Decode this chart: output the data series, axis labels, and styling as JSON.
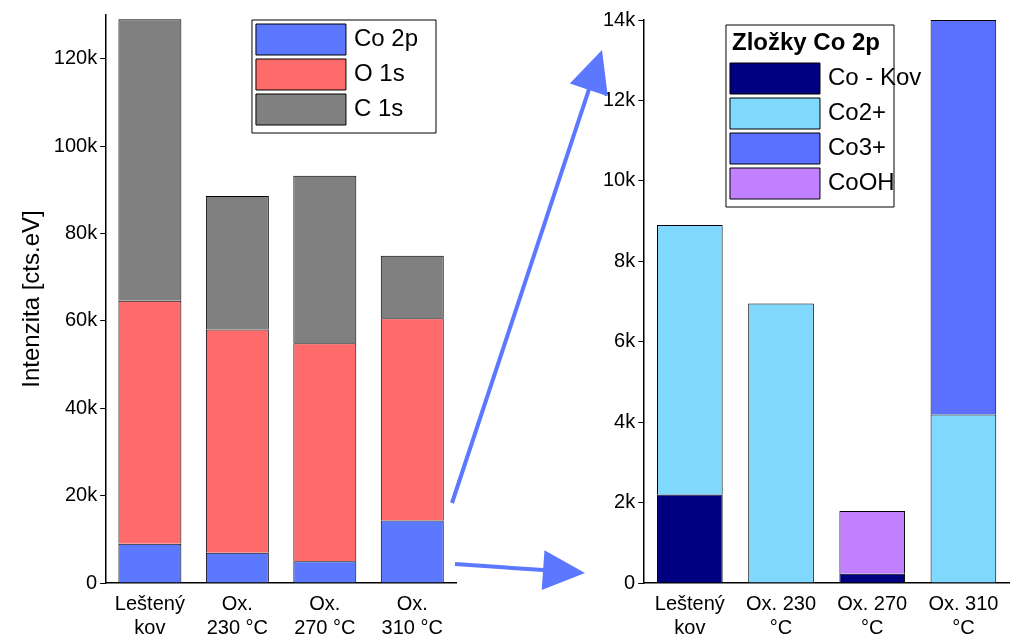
{
  "chart_data": [
    {
      "type": "bar",
      "stacked": true,
      "ylabel": "Intenzita [cts.eV]",
      "categories": [
        "Leštený kov",
        "Ox. 230 °C",
        "Ox. 270 °C",
        "Ox. 310 °C"
      ],
      "series": [
        {
          "name": "Co 2p",
          "color": "#5b78ff",
          "values": [
            9000,
            6900,
            5000,
            14300
          ]
        },
        {
          "name": "O 1s",
          "color": "#ff6b6b",
          "values": [
            55600,
            51100,
            49900,
            46300
          ]
        },
        {
          "name": "C 1s",
          "color": "#808080",
          "values": [
            64400,
            30600,
            38300,
            14300
          ]
        }
      ],
      "ylim": [
        0,
        130000
      ],
      "yticks": [
        0,
        {
          "value": 20000,
          "label": "20k"
        },
        {
          "value": 40000,
          "label": "40k"
        },
        {
          "value": 60000,
          "label": "60k"
        },
        {
          "value": 80000,
          "label": "80k"
        },
        {
          "value": 100000,
          "label": "100k"
        },
        {
          "value": 120000,
          "label": "120k"
        }
      ],
      "grid": false,
      "legend": "top right"
    },
    {
      "type": "bar",
      "stacked": true,
      "legend_title": "Zložky Co 2p",
      "categories": [
        "Leštený kov",
        "Ox. 230 °C",
        "Ox. 270 °C",
        "Ox. 310 °C"
      ],
      "series": [
        {
          "name": "Co - Kov",
          "color": "#000080",
          "values": [
            2200,
            0,
            230,
            0
          ]
        },
        {
          "name": "Co2+",
          "color": "#80d8ff",
          "values": [
            6700,
            6950,
            0,
            4190
          ]
        },
        {
          "name": "Co3+",
          "color": "#5b70ff",
          "values": [
            0,
            0,
            0,
            9810
          ]
        },
        {
          "name": "CoOH",
          "color": "#c080ff",
          "values": [
            0,
            0,
            1560,
            0
          ]
        }
      ],
      "ylim": [
        0,
        14000
      ],
      "yticks": [
        0,
        {
          "value": 2000,
          "label": "2k"
        },
        {
          "value": 4000,
          "label": "4k"
        },
        {
          "value": 6000,
          "label": "6k"
        },
        {
          "value": 8000,
          "label": "8k"
        },
        {
          "value": 10000,
          "label": "10k"
        },
        {
          "value": 12000,
          "label": "12k"
        },
        {
          "value": 14000,
          "label": "14k"
        }
      ],
      "grid": false,
      "legend": "top right"
    }
  ]
}
